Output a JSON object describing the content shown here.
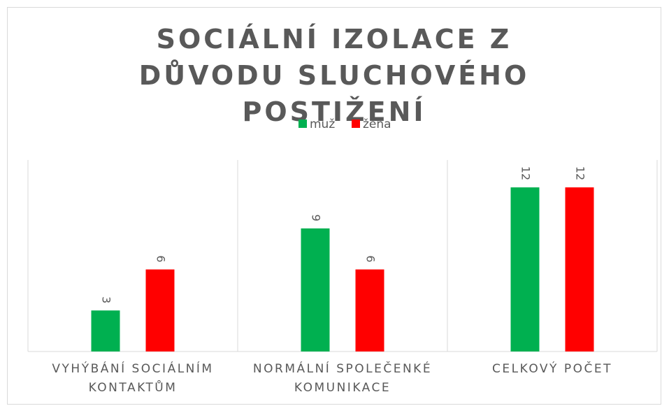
{
  "chart_data": {
    "type": "bar",
    "title": "SOCIÁLNÍ IZOLACE Z DŮVODU SLUCHOVÉHO POSTIŽENÍ",
    "categories": [
      "VYHÝBÁNÍ SOCIÁLNÍM KONTAKTŮM",
      "NORMÁLNÍ SPOLEČENKÉ KOMUNIKACE",
      "CELKOVÝ POČET"
    ],
    "series": [
      {
        "name": "muž",
        "color": "#00b050",
        "values": [
          3,
          9,
          12
        ]
      },
      {
        "name": "žena",
        "color": "#ff0000",
        "values": [
          6,
          6,
          12
        ]
      }
    ],
    "ylim": [
      0,
      14
    ],
    "legend": "top"
  }
}
